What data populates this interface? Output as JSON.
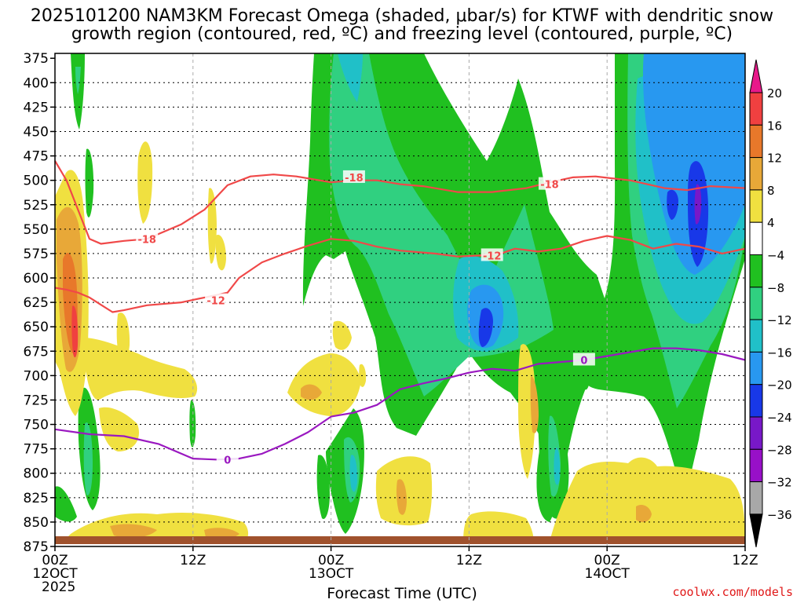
{
  "title_line1": "2025101200 NAM3KM Forecast Omega (shaded, μbar/s) for KTWF with dendritic snow",
  "title_line2": "growth region (contoured, red, ºC) and freezing level (contoured, purple, ºC)",
  "credit": "coolwx.com/models",
  "chart_data": {
    "type": "heatmap",
    "xlabel": "Forecast Time (UTC)",
    "x_range_hours": [
      0,
      60
    ],
    "x_ticks": [
      {
        "hour": 0,
        "label": "00Z",
        "sub": "12OCT",
        "sub2": "2025"
      },
      {
        "hour": 12,
        "label": "12Z"
      },
      {
        "hour": 24,
        "label": "00Z",
        "sub": "13OCT"
      },
      {
        "hour": 36,
        "label": "12Z"
      },
      {
        "hour": 48,
        "label": "00Z",
        "sub": "14OCT"
      },
      {
        "hour": 60,
        "label": "12Z"
      }
    ],
    "y_range_mb": [
      875,
      370
    ],
    "y_ticks": [
      375,
      400,
      425,
      450,
      475,
      500,
      525,
      550,
      575,
      600,
      625,
      650,
      675,
      700,
      725,
      750,
      775,
      800,
      825,
      850,
      875
    ],
    "colorbar": {
      "levels": [
        20,
        16,
        12,
        8,
        4,
        -4,
        -8,
        -12,
        -16,
        -20,
        -24,
        -28,
        -32,
        -36
      ],
      "colors": [
        "#e8198a",
        "#f04040",
        "#e8782a",
        "#e8a838",
        "#f0e040",
        "#ffffff",
        "#20c020",
        "#30d080",
        "#20c0c8",
        "#2898f0",
        "#1838e8",
        "#7818c8",
        "#9810c8",
        "#a8a8a8",
        "#000000"
      ]
    },
    "contours": [
      {
        "name": "-18",
        "color": "#f04848",
        "points": [
          [
            0,
            480
          ],
          [
            1,
            500
          ],
          [
            2,
            530
          ],
          [
            3,
            560
          ],
          [
            4,
            565
          ],
          [
            6,
            562
          ],
          [
            8,
            560
          ],
          [
            11,
            545
          ],
          [
            13,
            530
          ],
          [
            15,
            505
          ],
          [
            17,
            496
          ],
          [
            19,
            494
          ],
          [
            21,
            496
          ],
          [
            24,
            502
          ],
          [
            26,
            500
          ],
          [
            28,
            500
          ],
          [
            30,
            504
          ],
          [
            32,
            506
          ],
          [
            35,
            512
          ],
          [
            38,
            512
          ],
          [
            41,
            508
          ],
          [
            43,
            502
          ],
          [
            45,
            497
          ],
          [
            47,
            496
          ],
          [
            50,
            500
          ],
          [
            53,
            508
          ],
          [
            55,
            510
          ],
          [
            57,
            506
          ],
          [
            60,
            508
          ]
        ],
        "label_at": [
          [
            8,
            560
          ],
          [
            26,
            497
          ],
          [
            43,
            504
          ]
        ]
      },
      {
        "name": "-12",
        "color": "#f04848",
        "points": [
          [
            0,
            610
          ],
          [
            1,
            612
          ],
          [
            2,
            615
          ],
          [
            3,
            620
          ],
          [
            5,
            635
          ],
          [
            6,
            633
          ],
          [
            8,
            628
          ],
          [
            11,
            625
          ],
          [
            13,
            620
          ],
          [
            15,
            615
          ],
          [
            16,
            600
          ],
          [
            18,
            584
          ],
          [
            20,
            575
          ],
          [
            22,
            567
          ],
          [
            24,
            560
          ],
          [
            26,
            562
          ],
          [
            28,
            568
          ],
          [
            30,
            572
          ],
          [
            33,
            575
          ],
          [
            35,
            578
          ],
          [
            37,
            577
          ],
          [
            39,
            574
          ],
          [
            40,
            570
          ],
          [
            42,
            573
          ],
          [
            44,
            570
          ],
          [
            46,
            562
          ],
          [
            48,
            557
          ],
          [
            50,
            561
          ],
          [
            52,
            570
          ],
          [
            54,
            565
          ],
          [
            56,
            568
          ],
          [
            58,
            575
          ],
          [
            60,
            570
          ]
        ],
        "label_at": [
          [
            14,
            623
          ],
          [
            38,
            577
          ]
        ]
      },
      {
        "name": "0",
        "color": "#9a18c0",
        "points": [
          [
            0,
            755
          ],
          [
            3,
            760
          ],
          [
            6,
            762
          ],
          [
            9,
            770
          ],
          [
            10,
            775
          ],
          [
            12,
            785
          ],
          [
            14,
            786
          ],
          [
            16,
            785
          ],
          [
            18,
            780
          ],
          [
            20,
            770
          ],
          [
            22,
            758
          ],
          [
            24,
            742
          ],
          [
            26,
            738
          ],
          [
            28,
            730
          ],
          [
            30,
            714
          ],
          [
            32,
            708
          ],
          [
            34,
            703
          ],
          [
            36,
            697
          ],
          [
            38,
            693
          ],
          [
            40,
            695
          ],
          [
            42,
            688
          ],
          [
            44,
            686
          ],
          [
            46,
            684
          ],
          [
            48,
            680
          ],
          [
            50,
            676
          ],
          [
            52,
            672
          ],
          [
            54,
            672
          ],
          [
            56,
            674
          ],
          [
            58,
            678
          ],
          [
            60,
            684
          ]
        ],
        "label_at": [
          [
            15,
            786
          ],
          [
            46,
            684
          ]
        ]
      }
    ]
  }
}
